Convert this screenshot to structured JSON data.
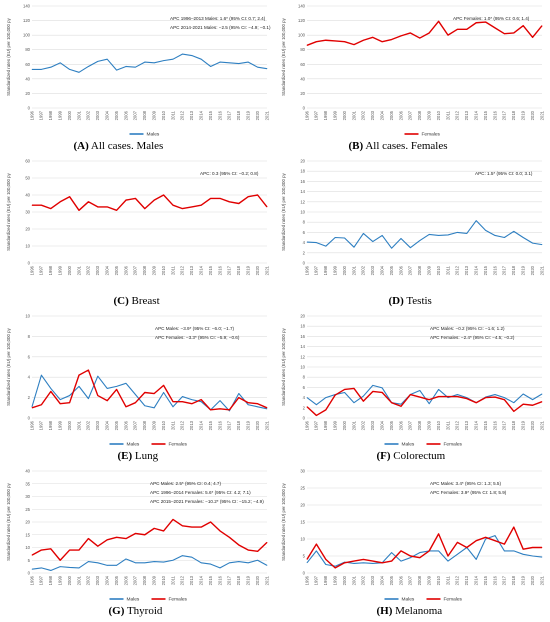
{
  "years": [
    "1996",
    "1997",
    "1998",
    "1999",
    "2000",
    "2001",
    "2002",
    "2003",
    "2004",
    "2005",
    "2006",
    "2007",
    "2008",
    "2009",
    "2010",
    "2011",
    "2012",
    "2013",
    "2014",
    "2015",
    "2016",
    "2017",
    "2018",
    "2019",
    "2020",
    "2021"
  ],
  "ylabel": "Standardized rates (EU) per 100,000 py",
  "colors": {
    "males": "#2e7fc1",
    "females": "#e00000"
  },
  "chart_data": [
    {
      "id": "A",
      "type": "line",
      "caption_letter": "(A)",
      "caption_text": " All cases. Males",
      "ylim": [
        0,
        140
      ],
      "yticks": [
        0,
        20,
        40,
        60,
        80,
        100,
        120,
        140
      ],
      "annotations": [
        "APC 1996–2013 Males: 1.6* (95% CI: 0.7; 2.4)",
        "APC 2014-2021 Males: −2.5 (95% CI: −4.9; −0.1)"
      ],
      "legend": [
        "Males"
      ],
      "series": [
        {
          "name": "Males",
          "color_key": "males",
          "values": [
            53,
            53,
            56,
            62,
            53,
            49,
            57,
            64,
            67,
            52,
            57,
            56,
            63,
            62,
            65,
            67,
            74,
            72,
            67,
            57,
            63,
            62,
            61,
            63,
            56,
            54
          ]
        }
      ]
    },
    {
      "id": "B",
      "type": "line",
      "caption_letter": "(B)",
      "caption_text": " All cases. Females",
      "ylim": [
        0,
        140
      ],
      "yticks": [
        0,
        20,
        40,
        60,
        80,
        100,
        120,
        140
      ],
      "annotations": [
        "APC Females: 1.0* (95% CI: 0.6; 1.4)"
      ],
      "legend": [
        "Females"
      ],
      "series": [
        {
          "name": "Females",
          "color_key": "females",
          "values": [
            86,
            91,
            93,
            92,
            91,
            87,
            93,
            97,
            91,
            94,
            99,
            103,
            96,
            103,
            119,
            100,
            108,
            108,
            117,
            118,
            110,
            102,
            103,
            113,
            97,
            113
          ]
        }
      ]
    },
    {
      "id": "C",
      "type": "line",
      "caption_letter": "(C)",
      "caption_text": " Breast",
      "ylim": [
        0,
        60
      ],
      "yticks": [
        0,
        10,
        20,
        30,
        40,
        50,
        60
      ],
      "annotations": [
        "APC: 0.3 (95% CI: −0.2; 0.8)"
      ],
      "legend": [],
      "series": [
        {
          "name": "",
          "color_key": "females",
          "values": [
            34,
            34,
            32,
            36,
            39,
            31,
            36,
            33,
            33,
            31,
            37,
            38,
            32,
            37,
            40,
            34,
            32,
            33,
            34,
            38,
            38,
            36,
            35,
            39,
            40,
            33
          ]
        }
      ]
    },
    {
      "id": "D",
      "type": "line",
      "caption_letter": "(D)",
      "caption_text": " Testis",
      "ylim": [
        0,
        20
      ],
      "yticks": [
        0,
        2,
        4,
        6,
        8,
        10,
        12,
        14,
        16,
        18,
        20
      ],
      "annotations": [
        "APC: 1.5* (95% CI: 0.0; 3.1)"
      ],
      "legend": [],
      "series": [
        {
          "name": "",
          "color_key": "males",
          "values": [
            4.1,
            4.0,
            3.3,
            5.0,
            4.9,
            3.1,
            5.8,
            4.2,
            5.4,
            2.9,
            4.8,
            3.0,
            4.4,
            5.6,
            5.4,
            5.5,
            6.0,
            5.8,
            8.3,
            6.4,
            5.4,
            5.0,
            6.2,
            5.0,
            3.9,
            3.6
          ]
        }
      ]
    },
    {
      "id": "E",
      "type": "line",
      "caption_letter": "(E)",
      "caption_text": " Lung",
      "ylim": [
        0,
        10
      ],
      "yticks": [
        0,
        2,
        4,
        6,
        8,
        10
      ],
      "annotations": [
        "APC Males: −3.9* (95% CI: −6.0; −1.7)",
        "APC Females: −3.3* (95% CI: −5.9; −0.6)"
      ],
      "legend": [
        "Males",
        "Females"
      ],
      "series": [
        {
          "name": "Males",
          "color_key": "males",
          "values": [
            1.1,
            4.2,
            2.9,
            1.8,
            2.2,
            3.1,
            1.9,
            4.1,
            2.9,
            3.1,
            3.4,
            2.3,
            1.2,
            1.0,
            2.5,
            1.1,
            2.1,
            1.8,
            1.6,
            0.8,
            1.7,
            0.7,
            2.4,
            1.3,
            1.1,
            0.9
          ]
        },
        {
          "name": "Females",
          "color_key": "females",
          "values": [
            1.0,
            1.3,
            2.6,
            1.4,
            1.5,
            4.2,
            4.7,
            2.2,
            1.7,
            2.8,
            1.1,
            1.5,
            2.5,
            2.4,
            3.2,
            1.6,
            1.6,
            1.4,
            1.8,
            0.8,
            0.9,
            0.8,
            2.0,
            1.5,
            1.4,
            1.0
          ]
        }
      ]
    },
    {
      "id": "F",
      "type": "line",
      "caption_letter": "(F)",
      "caption_text": " Colorectum",
      "ylim": [
        0,
        20
      ],
      "yticks": [
        0,
        2,
        4,
        6,
        8,
        10,
        12,
        14,
        16,
        18,
        20
      ],
      "annotations": [
        "APC Males: −0.2 (95% CI: −1.6; 1.2)",
        "APC Females: −2.4* (95% CI: −4.5; −0.2)"
      ],
      "legend": [
        "Males",
        "Females"
      ],
      "series": [
        {
          "name": "Males",
          "color_key": "males",
          "values": [
            4.0,
            2.6,
            4.0,
            4.6,
            5.0,
            3.0,
            4.3,
            6.4,
            5.9,
            3.0,
            2.7,
            4.6,
            5.4,
            2.8,
            5.6,
            4.0,
            4.6,
            4.0,
            3.0,
            4.1,
            4.6,
            4.0,
            3.0,
            4.7,
            3.6,
            4.7
          ]
        },
        {
          "name": "Females",
          "color_key": "females",
          "values": [
            2.2,
            0.5,
            1.6,
            4.5,
            5.6,
            5.8,
            3.3,
            5.2,
            5.0,
            3.0,
            2.3,
            4.6,
            4.1,
            3.6,
            4.2,
            4.2,
            4.2,
            3.8,
            3.0,
            4.0,
            4.1,
            3.6,
            1.3,
            2.7,
            2.5,
            3.2
          ]
        }
      ]
    },
    {
      "id": "G",
      "type": "line",
      "caption_letter": "(G)",
      "caption_text": " Thyroid",
      "ylim": [
        0,
        40
      ],
      "yticks": [
        0,
        5,
        10,
        15,
        20,
        25,
        30,
        35,
        40
      ],
      "annotations": [
        "APC Males: 2.5* (95% CI: 0.4; 4.7)",
        "APC 1996–2014 Females: 5.6* (95% CI: 4.2; 7.1)",
        "APC 2015–2021 Females: −10.2* (95% CI: −15.2; −4.9)"
      ],
      "legend": [
        "Males",
        "Females"
      ],
      "series": [
        {
          "name": "Males",
          "color_key": "males",
          "values": [
            1.5,
            2.0,
            1.0,
            2.5,
            2.2,
            2.0,
            4.5,
            4.0,
            3.0,
            3.0,
            5.5,
            4.0,
            4.0,
            4.5,
            4.3,
            5.0,
            6.8,
            6.2,
            4.0,
            3.5,
            2.0,
            4.0,
            4.5,
            4.0,
            5.0,
            3.0
          ]
        },
        {
          "name": "Females",
          "color_key": "females",
          "values": [
            7.0,
            9.0,
            9.5,
            5.0,
            9.0,
            9.0,
            13.5,
            10.5,
            13.0,
            14.0,
            13.5,
            15.5,
            15.0,
            17.5,
            16.5,
            21.0,
            18.5,
            18.0,
            18.0,
            20.0,
            16.5,
            14.0,
            11.0,
            9.0,
            8.5,
            12.0
          ]
        }
      ]
    },
    {
      "id": "H",
      "type": "line",
      "caption_letter": "(H)",
      "caption_text": " Melanoma",
      "ylim": [
        0,
        30
      ],
      "yticks": [
        0,
        5,
        10,
        15,
        20,
        25,
        30
      ],
      "annotations": [
        "APC Males: 3.4* (95% CI: 1.3; 5.5)",
        "APC Females: 3.9* (95% CI: 1.8; 5.9)"
      ],
      "legend": [
        "Males",
        "Females"
      ],
      "series": [
        {
          "name": "Males",
          "color_key": "males",
          "values": [
            3.0,
            6.5,
            2.5,
            2.0,
            3.2,
            2.8,
            3.0,
            2.8,
            3.0,
            6.0,
            3.5,
            4.5,
            6.0,
            6.5,
            6.5,
            3.5,
            5.5,
            7.5,
            4.0,
            10.0,
            11.0,
            6.5,
            6.5,
            5.5,
            5.0,
            4.7
          ]
        },
        {
          "name": "Females",
          "color_key": "females",
          "values": [
            4.0,
            8.5,
            4.0,
            1.5,
            3.0,
            3.5,
            4.0,
            3.5,
            3.0,
            3.5,
            6.5,
            5.0,
            4.5,
            6.5,
            11.5,
            5.0,
            9.0,
            7.5,
            9.5,
            10.5,
            9.5,
            8.5,
            13.5,
            7.0,
            7.5,
            7.5
          ]
        }
      ]
    }
  ]
}
